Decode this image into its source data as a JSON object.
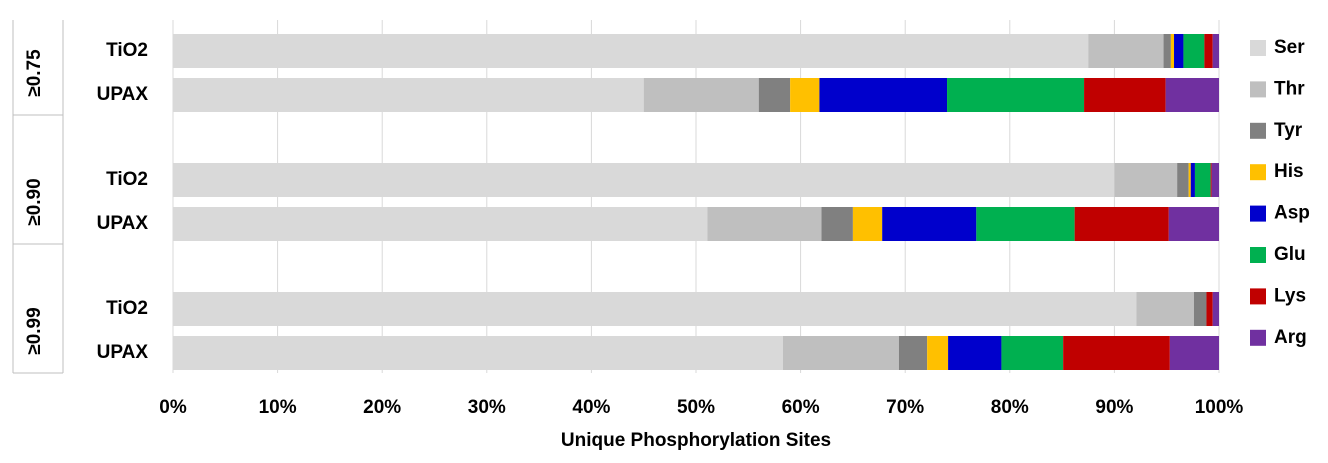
{
  "chart_data": {
    "type": "stacked_bar_horizontal",
    "x_label": "Unique Phosphorylation Sites",
    "group_labels": [
      "≥0.75",
      "≥0.90",
      "≥0.99"
    ],
    "categories": [
      "TiO2",
      "UPAX",
      "TiO2",
      "UPAX",
      "TiO2",
      "UPAX"
    ],
    "series": [
      {
        "name": "Ser",
        "color": "#d9d9d9",
        "values": [
          87.5,
          45,
          90,
          51.1,
          92.1,
          58.3
        ]
      },
      {
        "name": "Thr",
        "color": "#bfbfbf",
        "values": [
          7.2,
          11,
          6,
          10.9,
          5.5,
          11.1
        ]
      },
      {
        "name": "Tyr",
        "color": "#808080",
        "values": [
          0.7,
          3,
          1.1,
          3,
          1.2,
          2.7
        ]
      },
      {
        "name": "His",
        "color": "#ffc000",
        "values": [
          0.3,
          2.8,
          0.2,
          2.8,
          0,
          2
        ]
      },
      {
        "name": "Asp",
        "color": "#0000cc",
        "values": [
          0.9,
          12.2,
          0.4,
          9,
          0,
          5.1
        ]
      },
      {
        "name": "Glu",
        "color": "#00b050",
        "values": [
          2,
          13.1,
          1.5,
          9.4,
          0,
          5.9
        ]
      },
      {
        "name": "Lys",
        "color": "#c00000",
        "values": [
          0.8,
          7.8,
          0.1,
          9,
          0.6,
          10.2
        ]
      },
      {
        "name": "Arg",
        "color": "#7030a0",
        "values": [
          0.6,
          5.1,
          0.7,
          4.8,
          0.6,
          4.7
        ]
      }
    ],
    "xlim": [
      0,
      100
    ],
    "xticks": [
      {
        "value": 0,
        "label": "0%"
      },
      {
        "value": 10,
        "label": "10%"
      },
      {
        "value": 20,
        "label": "20%"
      },
      {
        "value": 30,
        "label": "30%"
      },
      {
        "value": 40,
        "label": "40%"
      },
      {
        "value": 50,
        "label": "50%"
      },
      {
        "value": 60,
        "label": "60%"
      },
      {
        "value": 70,
        "label": "70%"
      },
      {
        "value": 80,
        "label": "80%"
      },
      {
        "value": 90,
        "label": "90%"
      },
      {
        "value": 100,
        "label": "100%"
      }
    ],
    "grid": true
  }
}
